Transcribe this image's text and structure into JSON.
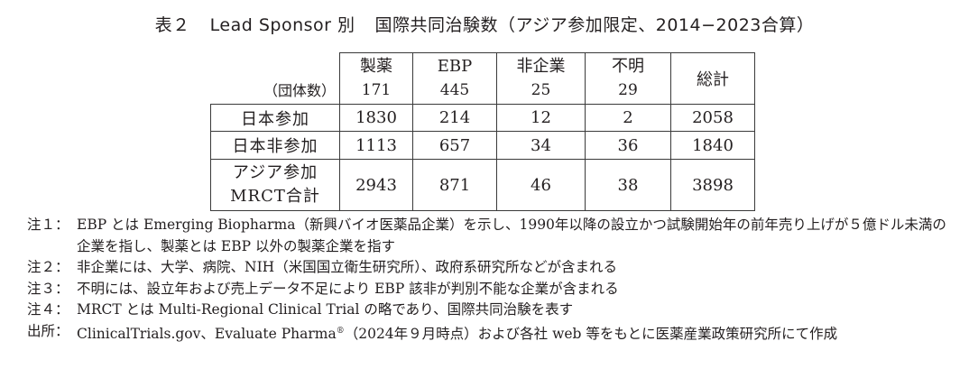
{
  "title": {
    "table_no": "表２",
    "text_part1": "Lead Sponsor 別",
    "text_part2": "国際共同治験数（アジア参加限定、2014−2023合算）"
  },
  "table": {
    "corner_label": "（団体数）",
    "columns": [
      {
        "label": "製薬",
        "count": "171"
      },
      {
        "label": "EBP",
        "count": "445"
      },
      {
        "label": "非企業",
        "count": "25"
      },
      {
        "label": "不明",
        "count": "29"
      },
      {
        "label": "総計",
        "count": ""
      }
    ],
    "rows": [
      {
        "label_lines": [
          "日本参加"
        ],
        "values": [
          "1830",
          "214",
          "12",
          "2",
          "2058"
        ]
      },
      {
        "label_lines": [
          "日本非参加"
        ],
        "values": [
          "1113",
          "657",
          "34",
          "36",
          "1840"
        ]
      },
      {
        "label_lines": [
          "アジア参加",
          "MRCT合計"
        ],
        "values": [
          "2943",
          "871",
          "46",
          "38",
          "3898"
        ]
      }
    ]
  },
  "chart_data": {
    "type": "table",
    "title": "表２ Lead Sponsor 別 国際共同治験数（アジア参加限定、2014−2023合算）",
    "columns": [
      "製薬",
      "EBP",
      "非企業",
      "不明",
      "総計"
    ],
    "organization_counts": {
      "製薬": 171,
      "EBP": 445,
      "非企業": 25,
      "不明": 29
    },
    "rows": [
      {
        "name": "日本参加",
        "values": [
          1830,
          214,
          12,
          2,
          2058
        ]
      },
      {
        "name": "日本非参加",
        "values": [
          1113,
          657,
          34,
          36,
          1840
        ]
      },
      {
        "name": "アジア参加MRCT合計",
        "values": [
          2943,
          871,
          46,
          38,
          3898
        ]
      }
    ]
  },
  "notes": [
    {
      "label": "注１：",
      "text": "EBP とは Emerging Biopharma（新興バイオ医薬品企業）を示し、1990年以降の設立かつ試験開始年の前年売り上げが５億ドル未満の企業を指し、製薬とは EBP 以外の製薬企業を指す"
    },
    {
      "label": "注２：",
      "text": "非企業には、大学、病院、NIH（米国国立衛生研究所）、政府系研究所などが含まれる"
    },
    {
      "label": "注３：",
      "text": "不明には、設立年および売上データ不足により EBP 該非が判別不能な企業が含まれる"
    },
    {
      "label": "注４：",
      "text": "MRCT とは Multi-Regional Clinical Trial の略であり、国際共同治験を表す"
    },
    {
      "label": "出所：",
      "text_before_sup": "ClinicalTrials.gov、Evaluate Pharma",
      "sup": "®",
      "text_after_sup": "（2024年９月時点）および各社 web 等をもとに医薬産業政策研究所にて作成"
    }
  ]
}
